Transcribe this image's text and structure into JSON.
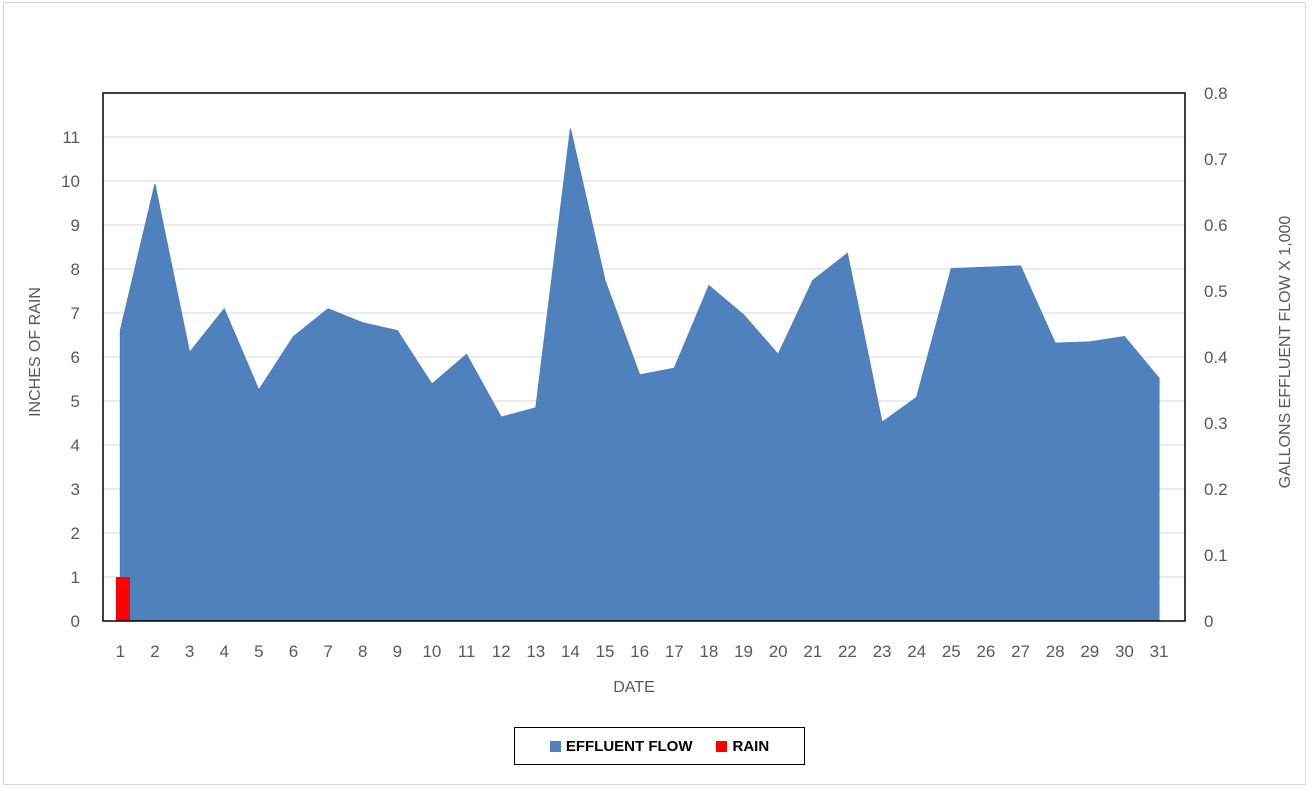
{
  "chart_data": {
    "type": "area",
    "title": "",
    "xlabel": "DATE",
    "ylabel_left": "INCHES OF RAIN",
    "ylabel_right": "GALLONS EFFLUENT FLOW X 1,000",
    "categories": [
      "1",
      "2",
      "3",
      "4",
      "5",
      "6",
      "7",
      "8",
      "9",
      "10",
      "11",
      "12",
      "13",
      "14",
      "15",
      "16",
      "17",
      "18",
      "19",
      "20",
      "21",
      "22",
      "23",
      "24",
      "25",
      "26",
      "27",
      "28",
      "29",
      "30",
      "31"
    ],
    "y_left": {
      "min": 0,
      "max": 12,
      "ticks": [
        0,
        1,
        2,
        3,
        4,
        5,
        6,
        7,
        8,
        9,
        10,
        11
      ]
    },
    "y_right": {
      "min": 0,
      "max": 0.8,
      "ticks": [
        0,
        0.1,
        0.2,
        0.3,
        0.4,
        0.5,
        0.6,
        0.7,
        0.8
      ],
      "tick_labels": [
        "0",
        "0.1",
        "0.2",
        "0.3",
        "0.4",
        "0.5",
        "0.6",
        "0.7",
        "0.8"
      ]
    },
    "grid": true,
    "legend_position": "bottom",
    "series": [
      {
        "name": "EFFLUENT FLOW",
        "type": "area",
        "axis": "right",
        "color": "#4f81bd",
        "values": [
          0.44,
          0.662,
          0.407,
          0.473,
          0.35,
          0.431,
          0.473,
          0.452,
          0.44,
          0.359,
          0.404,
          0.309,
          0.323,
          0.746,
          0.516,
          0.373,
          0.383,
          0.508,
          0.464,
          0.404,
          0.516,
          0.557,
          0.301,
          0.339,
          0.534,
          0.536,
          0.538,
          0.421,
          0.423,
          0.431,
          0.368
        ]
      },
      {
        "name": "RAIN",
        "type": "bar",
        "axis": "left",
        "color": "#ff0000",
        "values": [
          1,
          0,
          0,
          0,
          0,
          0,
          0,
          0,
          0,
          0,
          0,
          0,
          0,
          0,
          0,
          0,
          0,
          0,
          0,
          0,
          0,
          0,
          0,
          0,
          0,
          0,
          0,
          0,
          0,
          0,
          0
        ]
      }
    ]
  }
}
